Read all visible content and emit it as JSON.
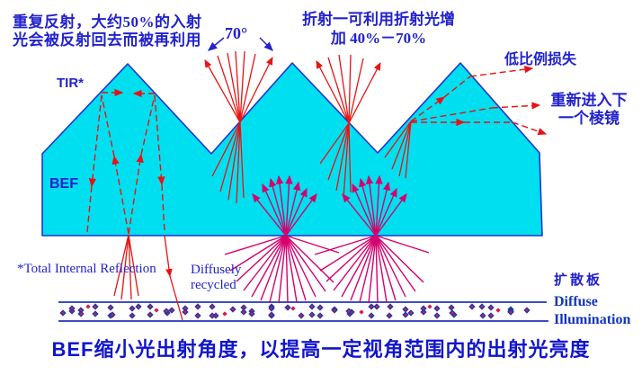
{
  "colors": {
    "film_fill": "#00dfef",
    "outline_blue": "#2233cc",
    "ray_red": "#e81212",
    "ray_magenta": "#d4006e",
    "text_blue": "#2222cc",
    "caption_blue": "#1115cc",
    "label_navy": "#1133bb",
    "diffuser_line": "#2233bb",
    "dot_navy": "#2335a8",
    "dot_red": "#d02050"
  },
  "annotations": {
    "recycle_note_line1": "重复反射，大约50%的入射",
    "recycle_note_line2": "光会被反射回去而被再利用",
    "angle_label": "70°",
    "refraction_note_line1": "折射一可利用折射光增",
    "refraction_note_line2": "加 40%－70%",
    "low_loss_label": "低比例损失",
    "reenter_line1": "重新进入下",
    "reenter_line2": "一个棱镜",
    "tir_label": "TIR*",
    "bef_label": "BEF",
    "tir_footnote": "*Total Internal Reflection",
    "diffusely_line1": "Diffusely",
    "diffusely_line2": "recycled",
    "diffuser_label": "扩散板",
    "diffuse_line1": "Diffuse",
    "diffuse_line2": "Illumination",
    "caption": "BEF缩小光出射角度，以提高一定视角范围内的出射光亮度"
  }
}
